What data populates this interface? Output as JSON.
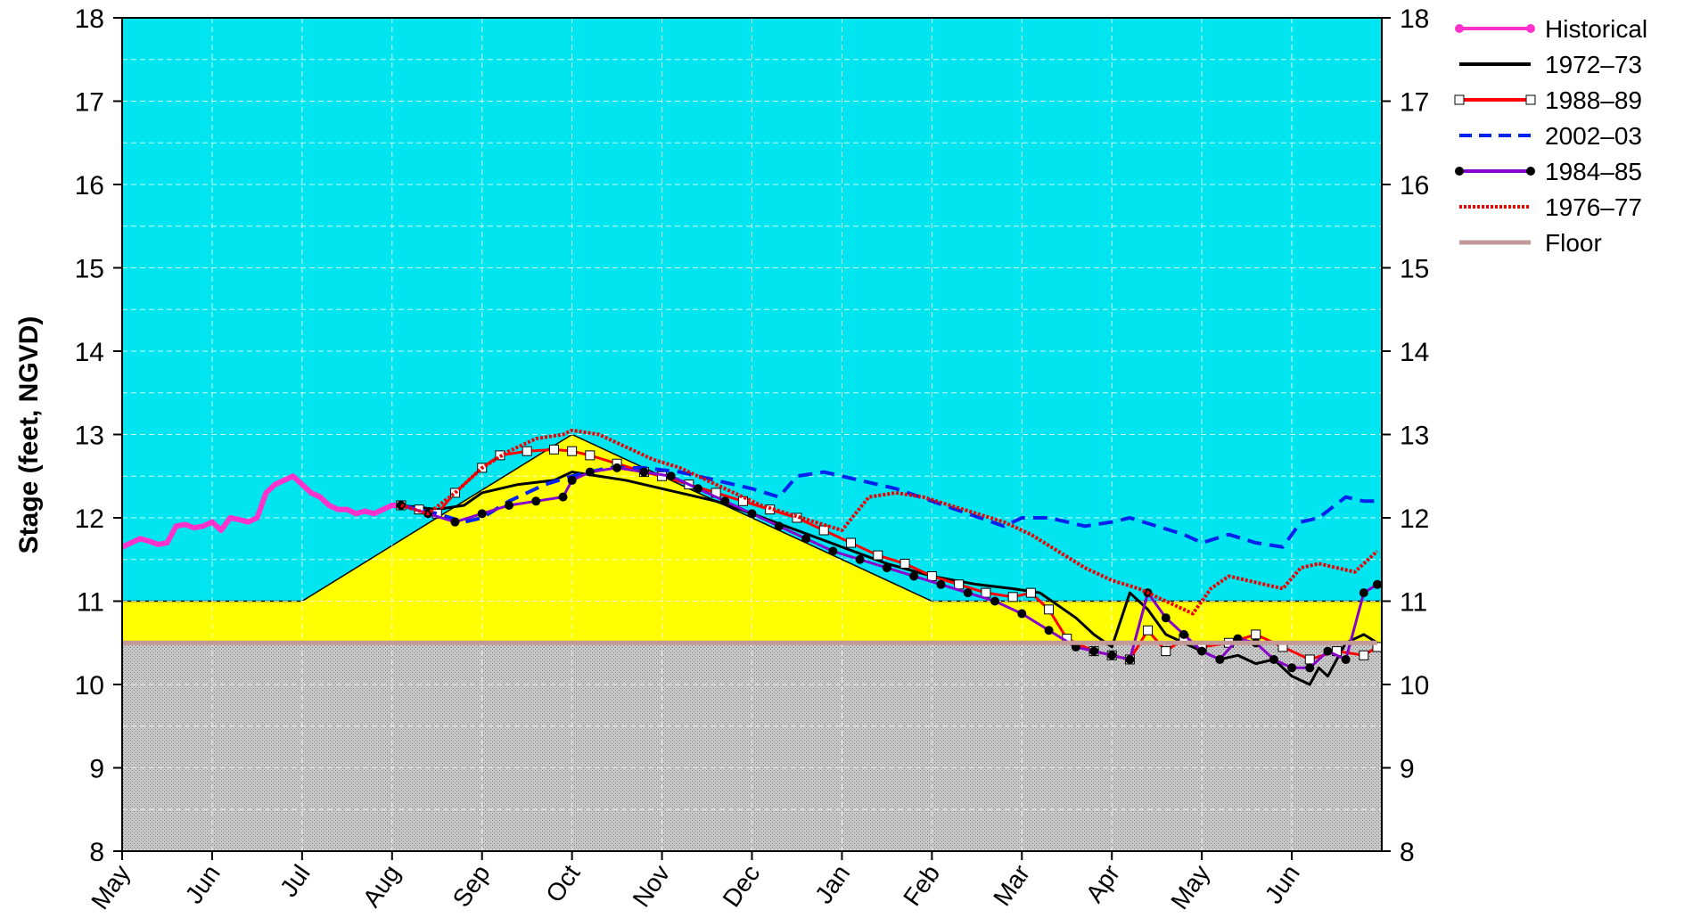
{
  "chart_data": {
    "type": "line",
    "title": "",
    "xlabel": "",
    "ylabel": "Stage (feet, NGVD)",
    "ylim": [
      8,
      18
    ],
    "y_ticks": [
      "8",
      "9",
      "10",
      "11",
      "12",
      "13",
      "14",
      "15",
      "16",
      "17",
      "18"
    ],
    "x_ticks": [
      "May",
      "Jun",
      "Jul",
      "Aug",
      "Sep",
      "Oct",
      "Nov",
      "Dec",
      "Jan",
      "Feb",
      "Mar",
      "Apr",
      "May",
      "Jun"
    ],
    "grid": true,
    "secondary_y_axis": true,
    "legend_position": "right",
    "zones": [
      {
        "name": "upper-zone",
        "color": "#00e5f0",
        "boundary_months": [
          0,
          14
        ],
        "boundary_stage": [
          18,
          18
        ]
      },
      {
        "name": "operational-zone",
        "color": "#ffff00",
        "boundary_months": [
          0,
          2,
          5,
          9,
          14
        ],
        "boundary_stage": [
          11.0,
          11.0,
          13.0,
          11.0,
          11.0
        ]
      },
      {
        "name": "below-floor-zone",
        "color": "#bfbfbf",
        "boundary_months": [
          0,
          14
        ],
        "boundary_stage": [
          10.5,
          10.5
        ]
      }
    ],
    "series": [
      {
        "name": "Historical",
        "color": "#ff33cc",
        "style": "solid-dots",
        "x": [
          0,
          0.1,
          0.2,
          0.3,
          0.4,
          0.5,
          0.6,
          0.7,
          0.8,
          0.9,
          1.0,
          1.1,
          1.2,
          1.3,
          1.4,
          1.5,
          1.6,
          1.7,
          1.8,
          1.9,
          2.0,
          2.1,
          2.2,
          2.3,
          2.4,
          2.5,
          2.6,
          2.7,
          2.8,
          2.9,
          3.0,
          3.1
        ],
        "y": [
          11.65,
          11.7,
          11.75,
          11.72,
          11.68,
          11.7,
          11.9,
          11.92,
          11.88,
          11.9,
          11.95,
          11.85,
          12.0,
          11.98,
          11.95,
          12.0,
          12.3,
          12.4,
          12.45,
          12.5,
          12.4,
          12.3,
          12.25,
          12.15,
          12.1,
          12.1,
          12.05,
          12.08,
          12.05,
          12.1,
          12.15,
          12.15
        ]
      },
      {
        "name": "1972–73",
        "color": "#000000",
        "style": "solid",
        "x": [
          3.1,
          3.5,
          3.8,
          4.0,
          4.4,
          4.8,
          5.0,
          5.3,
          5.6,
          6.0,
          6.2,
          6.6,
          7.0,
          7.5,
          8.0,
          8.5,
          9.0,
          9.5,
          9.9,
          10.2,
          10.6,
          10.8,
          11.0,
          11.2,
          11.4,
          11.6,
          11.8,
          12.0,
          12.2,
          12.4,
          12.6,
          12.8,
          13.0,
          13.2,
          13.3,
          13.4,
          13.6,
          13.8,
          13.95
        ],
        "y": [
          12.15,
          12.1,
          12.15,
          12.3,
          12.4,
          12.45,
          12.55,
          12.5,
          12.45,
          12.35,
          12.3,
          12.2,
          12.05,
          11.85,
          11.65,
          11.45,
          11.3,
          11.2,
          11.15,
          11.1,
          10.8,
          10.6,
          10.45,
          11.1,
          10.9,
          10.6,
          10.5,
          10.4,
          10.3,
          10.35,
          10.25,
          10.3,
          10.1,
          10.0,
          10.2,
          10.1,
          10.5,
          10.6,
          10.5
        ]
      },
      {
        "name": "1988–89",
        "color": "#ff0000",
        "style": "solid-squares",
        "x": [
          3.1,
          3.3,
          3.5,
          3.7,
          4.0,
          4.2,
          4.5,
          4.8,
          5.0,
          5.2,
          5.5,
          5.8,
          6.0,
          6.3,
          6.6,
          6.9,
          7.2,
          7.5,
          7.8,
          8.1,
          8.4,
          8.7,
          9.0,
          9.3,
          9.6,
          9.9,
          10.1,
          10.3,
          10.5,
          10.8,
          11.0,
          11.2,
          11.4,
          11.6,
          11.8,
          12.0,
          12.3,
          12.6,
          12.9,
          13.2,
          13.5,
          13.8,
          13.95
        ],
        "y": [
          12.15,
          12.1,
          12.05,
          12.3,
          12.6,
          12.75,
          12.8,
          12.82,
          12.8,
          12.75,
          12.65,
          12.55,
          12.5,
          12.4,
          12.3,
          12.2,
          12.1,
          12.0,
          11.85,
          11.7,
          11.55,
          11.45,
          11.3,
          11.2,
          11.1,
          11.05,
          11.1,
          10.9,
          10.55,
          10.4,
          10.35,
          10.3,
          10.65,
          10.4,
          10.55,
          10.45,
          10.5,
          10.6,
          10.45,
          10.3,
          10.4,
          10.35,
          10.45
        ]
      },
      {
        "name": "2002–03",
        "color": "#0022ee",
        "style": "dashed",
        "x": [
          3.1,
          3.5,
          3.8,
          4.0,
          4.3,
          4.7,
          5.0,
          5.4,
          5.8,
          6.2,
          6.6,
          7.0,
          7.3,
          7.5,
          7.8,
          8.2,
          8.6,
          9.0,
          9.4,
          9.8,
          10.0,
          10.3,
          10.7,
          11.0,
          11.2,
          11.5,
          11.8,
          12.0,
          12.3,
          12.6,
          12.9,
          13.1,
          13.3,
          13.6,
          13.8,
          13.95
        ],
        "y": [
          12.15,
          12.05,
          11.95,
          12.0,
          12.2,
          12.4,
          12.5,
          12.6,
          12.6,
          12.55,
          12.45,
          12.35,
          12.25,
          12.5,
          12.55,
          12.45,
          12.35,
          12.2,
          12.05,
          11.9,
          12.0,
          12.0,
          11.9,
          11.95,
          12.0,
          11.9,
          11.8,
          11.7,
          11.8,
          11.7,
          11.65,
          11.95,
          12.0,
          12.25,
          12.2,
          12.2
        ]
      },
      {
        "name": "1984–85",
        "color": "#8800cc",
        "style": "solid-dots",
        "x": [
          3.1,
          3.4,
          3.7,
          4.0,
          4.3,
          4.6,
          4.9,
          5.0,
          5.2,
          5.5,
          5.8,
          6.1,
          6.4,
          6.7,
          7.0,
          7.3,
          7.6,
          7.9,
          8.2,
          8.5,
          8.8,
          9.1,
          9.4,
          9.7,
          10.0,
          10.3,
          10.6,
          10.8,
          11.0,
          11.2,
          11.4,
          11.6,
          11.8,
          12.0,
          12.2,
          12.4,
          12.6,
          12.8,
          13.0,
          13.2,
          13.4,
          13.6,
          13.8,
          13.95
        ],
        "y": [
          12.15,
          12.05,
          11.95,
          12.05,
          12.15,
          12.2,
          12.25,
          12.45,
          12.55,
          12.6,
          12.55,
          12.5,
          12.35,
          12.2,
          12.05,
          11.9,
          11.75,
          11.6,
          11.5,
          11.4,
          11.3,
          11.2,
          11.1,
          11.0,
          10.85,
          10.65,
          10.45,
          10.4,
          10.35,
          10.3,
          11.1,
          10.8,
          10.6,
          10.4,
          10.3,
          10.55,
          10.5,
          10.3,
          10.2,
          10.2,
          10.4,
          10.3,
          11.1,
          11.2
        ]
      },
      {
        "name": "1976–77",
        "color": "#ee0000",
        "style": "dotted",
        "x": [
          3.1,
          3.4,
          3.7,
          4.0,
          4.3,
          4.6,
          4.9,
          5.0,
          5.3,
          5.6,
          5.9,
          6.2,
          6.5,
          6.8,
          7.1,
          7.4,
          7.7,
          8.0,
          8.3,
          8.6,
          8.9,
          9.2,
          9.5,
          9.8,
          10.1,
          10.4,
          10.7,
          11.0,
          11.3,
          11.6,
          11.9,
          12.1,
          12.3,
          12.5,
          12.7,
          12.9,
          13.1,
          13.3,
          13.5,
          13.7,
          13.95
        ],
        "y": [
          12.15,
          12.05,
          12.3,
          12.6,
          12.8,
          12.95,
          13.0,
          13.05,
          13.0,
          12.85,
          12.7,
          12.6,
          12.45,
          12.3,
          12.15,
          12.05,
          11.95,
          11.85,
          12.25,
          12.3,
          12.25,
          12.15,
          12.05,
          11.95,
          11.8,
          11.6,
          11.4,
          11.25,
          11.15,
          11.0,
          10.85,
          11.15,
          11.3,
          11.25,
          11.2,
          11.15,
          11.4,
          11.45,
          11.4,
          11.35,
          11.6
        ]
      },
      {
        "name": "Floor",
        "color": "#c49a98",
        "style": "solid-thick",
        "x": [
          0,
          13.95
        ],
        "y": [
          10.5,
          10.5
        ]
      }
    ]
  }
}
